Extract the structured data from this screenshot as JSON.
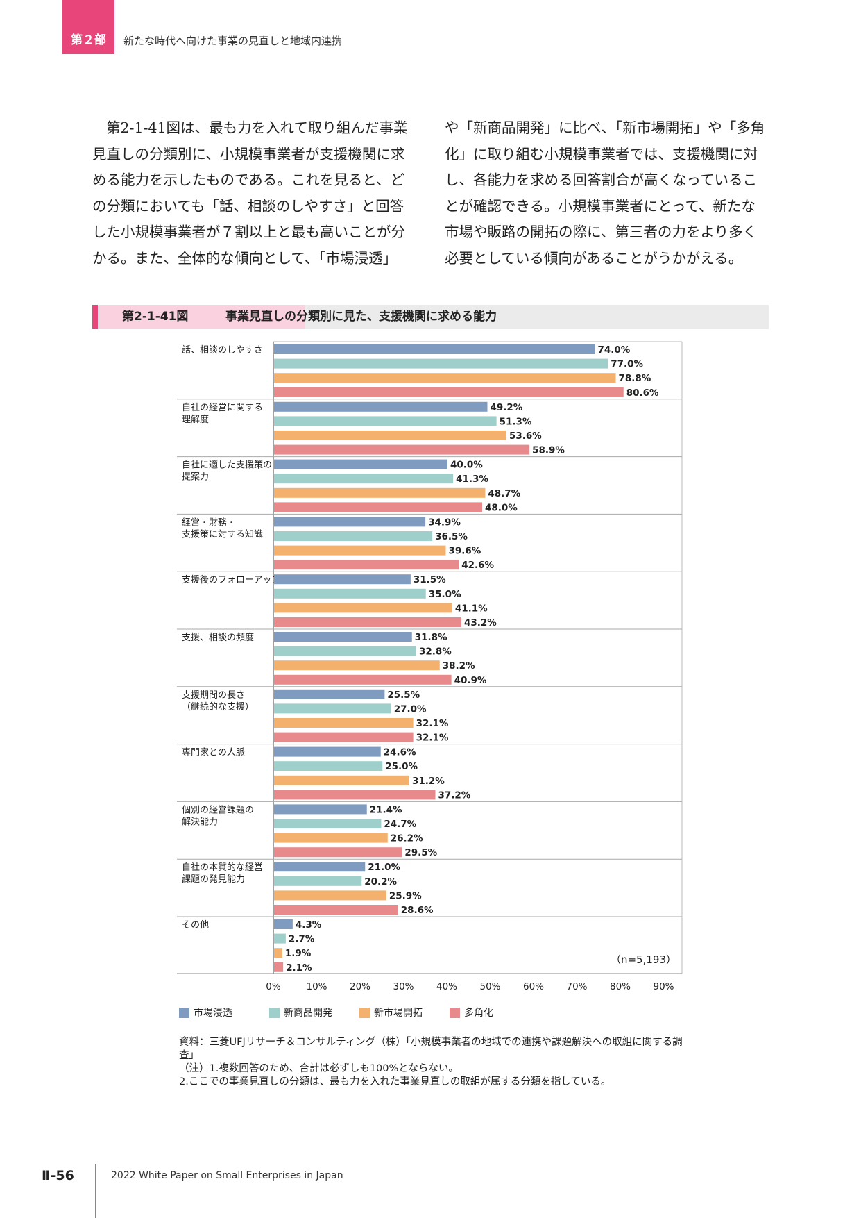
{
  "header": {
    "part_label": "第２部",
    "part_title": "新たな時代へ向けた事業の見直しと地域内連携"
  },
  "body_text": {
    "left": "第2-1-41図は、最も力を入れて取り組んだ事業見直しの分類別に、小規模事業者が支援機関に求める能力を示したものである。これを見ると、どの分類においても「話、相談のしやすさ」と回答した小規模事業者が７割以上と最も高いことが分かる。また、全体的な傾向として、「市場浸透」",
    "right": "や「新商品開発」に比べ、「新市場開拓」や「多角化」に取り組む小規模事業者では、支援機関に対し、各能力を求める回答割合が高くなっていることが確認できる。小規模事業者にとって、新たな市場や販路の開拓の際に、第三者の力をより多く必要としている傾向があることがうかがえる。"
  },
  "figure": {
    "number": "第2-1-41図",
    "title": "事業見直しの分類別に見た、支援機関に求める能力"
  },
  "chart_data": {
    "type": "bar",
    "orientation": "horizontal",
    "categories": [
      "話、相談のしやすさ",
      "自社の経営に関する\n理解度",
      "自社に適した支援策の\n提案力",
      "経営・財務・\n支援策に対する知識",
      "支援後のフォローアップ",
      "支援、相談の頻度",
      "支援期間の長さ\n（継続的な支援）",
      "専門家との人脈",
      "個別の経営課題の\n解決能力",
      "自社の本質的な経営\n課題の発見能力",
      "その他"
    ],
    "series": [
      {
        "name": "市場浸透",
        "color": "#7f9cc0",
        "values": [
          74.0,
          49.2,
          40.0,
          34.9,
          31.5,
          31.8,
          25.5,
          24.6,
          21.4,
          21.0,
          4.3
        ]
      },
      {
        "name": "新商品開発",
        "color": "#9fcfca",
        "values": [
          77.0,
          51.3,
          41.3,
          36.5,
          35.0,
          32.8,
          27.0,
          25.0,
          24.7,
          20.2,
          2.7
        ]
      },
      {
        "name": "新市場開拓",
        "color": "#f4b06d",
        "values": [
          78.8,
          53.6,
          48.7,
          39.6,
          41.1,
          38.2,
          32.1,
          31.2,
          26.2,
          25.9,
          1.9
        ]
      },
      {
        "name": "多角化",
        "color": "#e88a8b",
        "values": [
          80.6,
          58.9,
          48.0,
          42.6,
          43.2,
          40.9,
          32.1,
          37.2,
          29.5,
          28.6,
          2.1
        ]
      }
    ],
    "xlim": [
      0,
      90
    ],
    "xticks": [
      0,
      10,
      20,
      30,
      40,
      50,
      60,
      70,
      80,
      90
    ],
    "tick_suffix": "%",
    "value_suffix": "%",
    "legend_position": "bottom",
    "grid": false,
    "annotation": "（n=5,193）"
  },
  "notes": {
    "source": "資料：三菱UFJリサーチ＆コンサルティング（株）「小規模事業者の地域での連携や課題解決への取組に関する調査」",
    "note1": "（注）1.複数回答のため、合計は必ずしも100%とならない。",
    "note2": "2.ここでの事業見直しの分類は、最も力を入れた事業見直しの取組が属する分類を指している。"
  },
  "footer": {
    "page_number": "Ⅱ-56",
    "title": "2022 White Paper on Small Enterprises in Japan"
  },
  "colors": {
    "accent": "#e8457a",
    "accent_light": "#fad1de"
  }
}
